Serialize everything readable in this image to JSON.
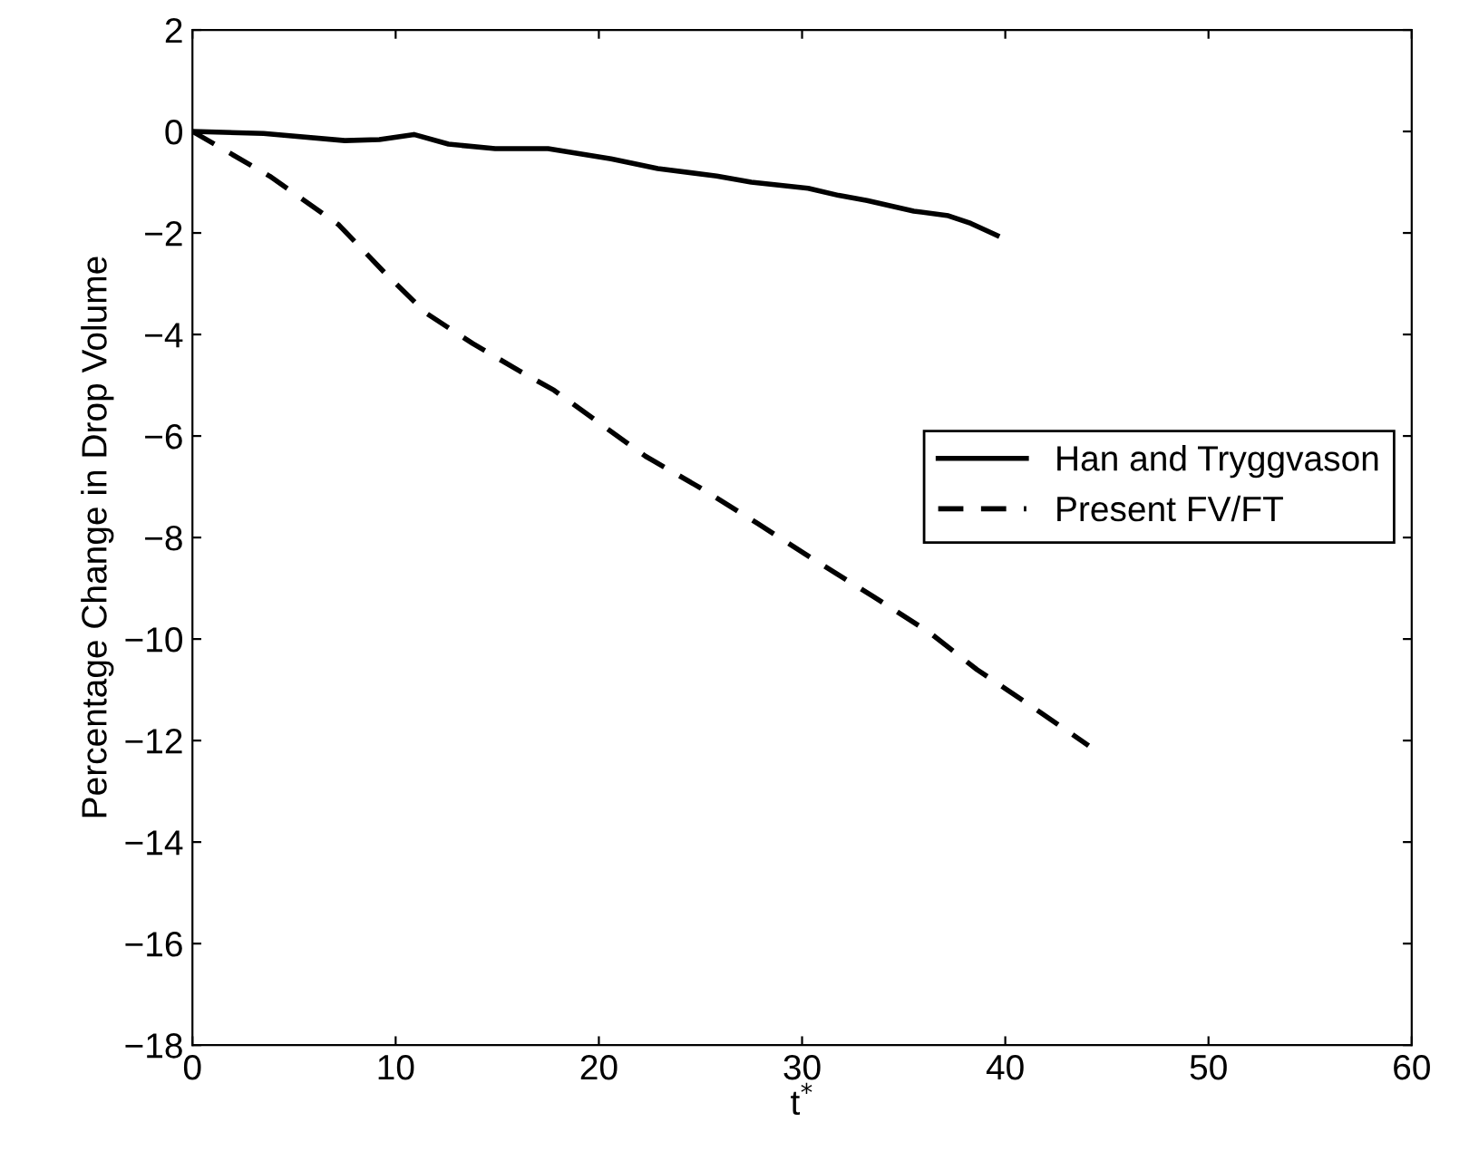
{
  "chart_data": {
    "type": "line",
    "xlabel": "t$^{*}$",
    "ylabel": "Percentage Change in Drop Volume",
    "xlim": [
      0,
      60
    ],
    "xticks": [
      0,
      10,
      20,
      30,
      40,
      50,
      60
    ],
    "ylim": [
      -18,
      2
    ],
    "yticks": [
      -18,
      -16,
      -14,
      -12,
      -10,
      -8,
      -6,
      -4,
      -2,
      0,
      2
    ],
    "grid": false,
    "legend": "right",
    "marker": "none",
    "series": [
      {
        "name": "Han and Tryggvason",
        "color": "#000000",
        "line_style": "solid",
        "x": [
          0,
          3.5,
          7.5,
          9.2,
          10.9,
          12.6,
          14.9,
          17.5,
          20.6,
          22.9,
          25.8,
          27.5,
          30.3,
          31.8,
          33.2,
          35.5,
          37.2,
          38.3,
          39.6
        ],
        "values": [
          0,
          -0.04,
          -0.18,
          -0.16,
          -0.06,
          -0.25,
          -0.34,
          -0.34,
          -0.54,
          -0.73,
          -0.88,
          -1.0,
          -1.12,
          -1.26,
          -1.36,
          -1.57,
          -1.66,
          -1.81,
          -2.05
        ]
      },
      {
        "name": "Present FV/FT",
        "color": "#000000",
        "line_style": "dashed",
        "x": [
          0,
          3.8,
          7.2,
          9.5,
          11.5,
          13.8,
          16.1,
          17.8,
          19.8,
          22.3,
          24.9,
          27.8,
          30.6,
          33.5,
          36.3,
          38.6,
          41.2,
          44.1
        ],
        "values": [
          0,
          -0.88,
          -1.84,
          -2.8,
          -3.58,
          -4.18,
          -4.72,
          -5.1,
          -5.68,
          -6.4,
          -7.0,
          -7.72,
          -8.44,
          -9.16,
          -9.88,
          -10.6,
          -11.3,
          -12.1
        ]
      }
    ]
  }
}
